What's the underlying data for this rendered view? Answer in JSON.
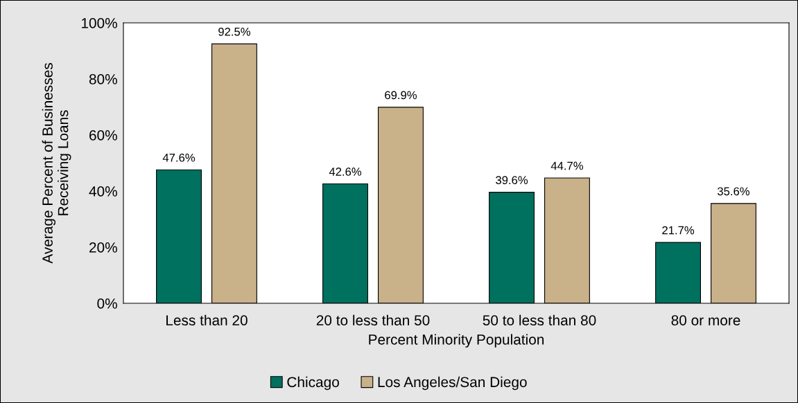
{
  "chart_data": {
    "type": "bar",
    "xlabel": "Percent Minority Population",
    "ylabel": "Average Percent of Businesses\nReceiving Loans",
    "categories": [
      "Less than 20",
      "20 to less than 50",
      "50 to less than 80",
      "80 or more"
    ],
    "series": [
      {
        "name": "Chicago",
        "color": "#00705f",
        "values": [
          47.6,
          42.6,
          39.6,
          21.7
        ],
        "value_labels": [
          "47.6%",
          "42.6%",
          "39.6%",
          "21.7%"
        ]
      },
      {
        "name": "Los Angeles/San Diego",
        "color": "#c9b18a",
        "values": [
          92.5,
          69.9,
          44.7,
          35.6
        ],
        "value_labels": [
          "92.5%",
          "69.9%",
          "44.7%",
          "35.6%"
        ]
      }
    ],
    "ylim": [
      0,
      100
    ],
    "yticks": [
      {
        "value": 0,
        "label": "0%"
      },
      {
        "value": 20,
        "label": "20%"
      },
      {
        "value": 40,
        "label": "40%"
      },
      {
        "value": 60,
        "label": "60%"
      },
      {
        "value": 80,
        "label": "80%"
      },
      {
        "value": 100,
        "label": "100%"
      }
    ],
    "grid": false,
    "legend": "bottom"
  }
}
